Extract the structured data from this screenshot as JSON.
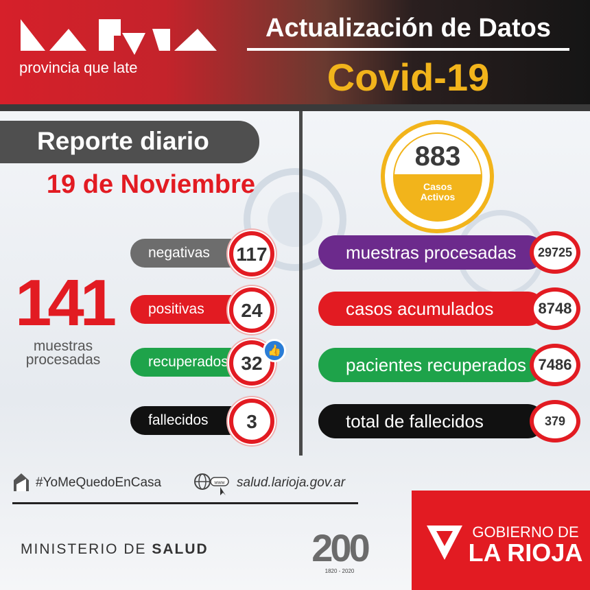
{
  "header": {
    "logo_tagline": "provincia que late",
    "title": "Actualización de Datos",
    "subtitle": "Covid-19"
  },
  "report": {
    "heading": "Reporte diario",
    "date": "19 de Noviembre"
  },
  "daily": {
    "total_value": "141",
    "total_label": "muestras procesadas",
    "stats": [
      {
        "label": "negativas",
        "value": "117",
        "color": "#6d6d6d"
      },
      {
        "label": "positivas",
        "value": "24",
        "color": "#e21b22"
      },
      {
        "label": "recuperados",
        "value": "32",
        "color": "#1ea34a"
      },
      {
        "label": "fallecidos",
        "value": "3",
        "color": "#111111"
      }
    ],
    "like_icon": "thumbs-up-icon"
  },
  "active": {
    "value": "883",
    "label_line1": "Casos",
    "label_line2": "Activos",
    "color": "#f2b41b"
  },
  "cumulative": [
    {
      "label": "muestras procesadas",
      "value": "29725",
      "color": "#6c2a8c"
    },
    {
      "label": "casos acumulados",
      "value": "8748",
      "color": "#e21b22"
    },
    {
      "label": "pacientes recuperados",
      "value": "7486",
      "color": "#1ea34a"
    },
    {
      "label": "total de fallecidos",
      "value": "379",
      "color": "#111111"
    }
  ],
  "footer": {
    "hashtag": "#YoMeQuedoEnCasa",
    "website": "salud.larioja.gov.ar",
    "www_badge": "www",
    "ministry_light": "MINISTERIO DE",
    "ministry_bold": "SALUD",
    "gov_line1": "GOBIERNO DE",
    "gov_line2": "LA RIOJA",
    "bicentennial": "200",
    "bicentennial_years": "1820 - 2020"
  }
}
